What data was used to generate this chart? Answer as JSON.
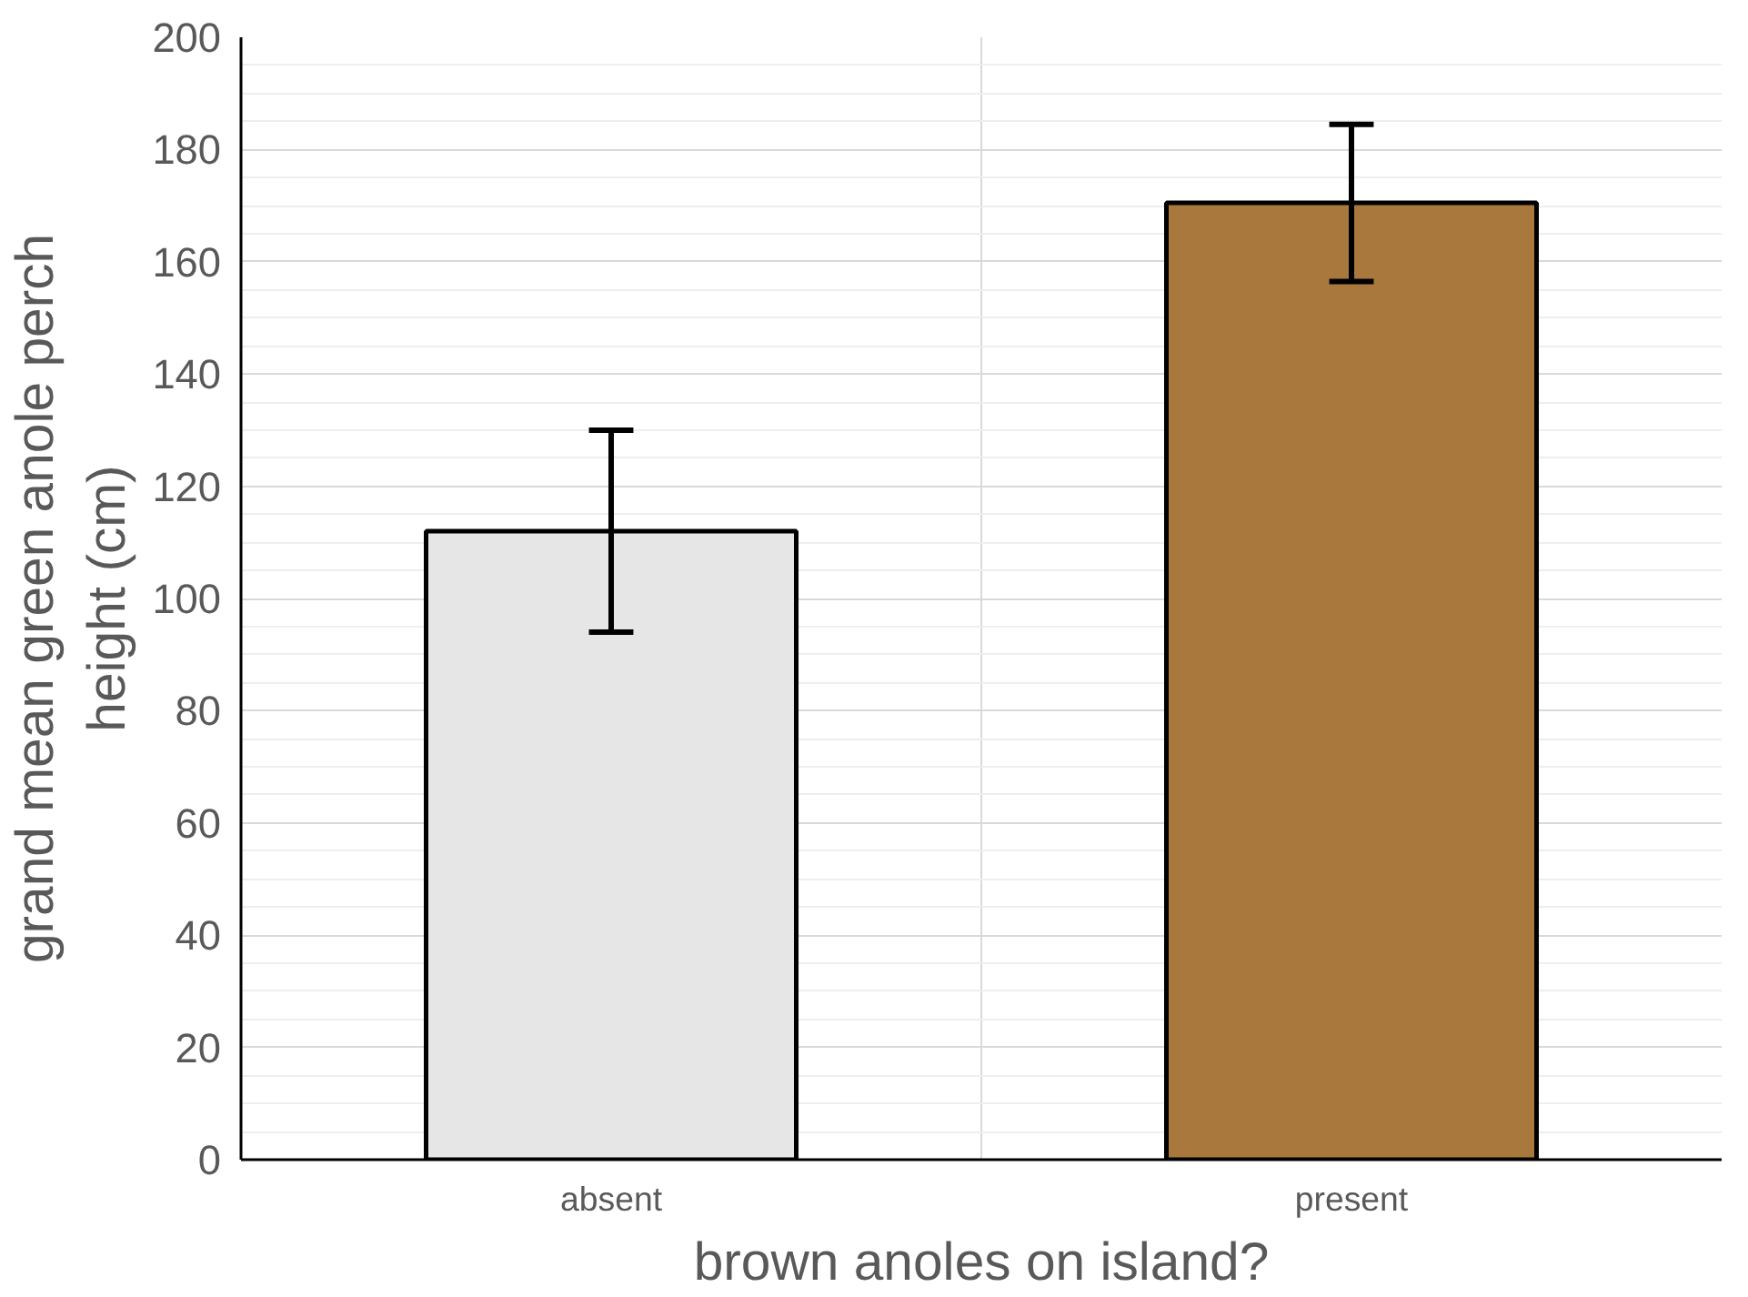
{
  "chart_data": {
    "type": "bar",
    "xlabel": "brown anoles on island?",
    "ylabel": "grand mean green anole perch height (cm)",
    "categories": [
      "absent",
      "present"
    ],
    "values": [
      112,
      170.5
    ],
    "errors": [
      18,
      14
    ],
    "colors": [
      "#e6e6e6",
      "#a8783c"
    ],
    "ylim": [
      0,
      200
    ],
    "yticks": [
      0,
      20,
      40,
      60,
      80,
      100,
      120,
      140,
      160,
      180,
      200
    ],
    "grid": true
  }
}
